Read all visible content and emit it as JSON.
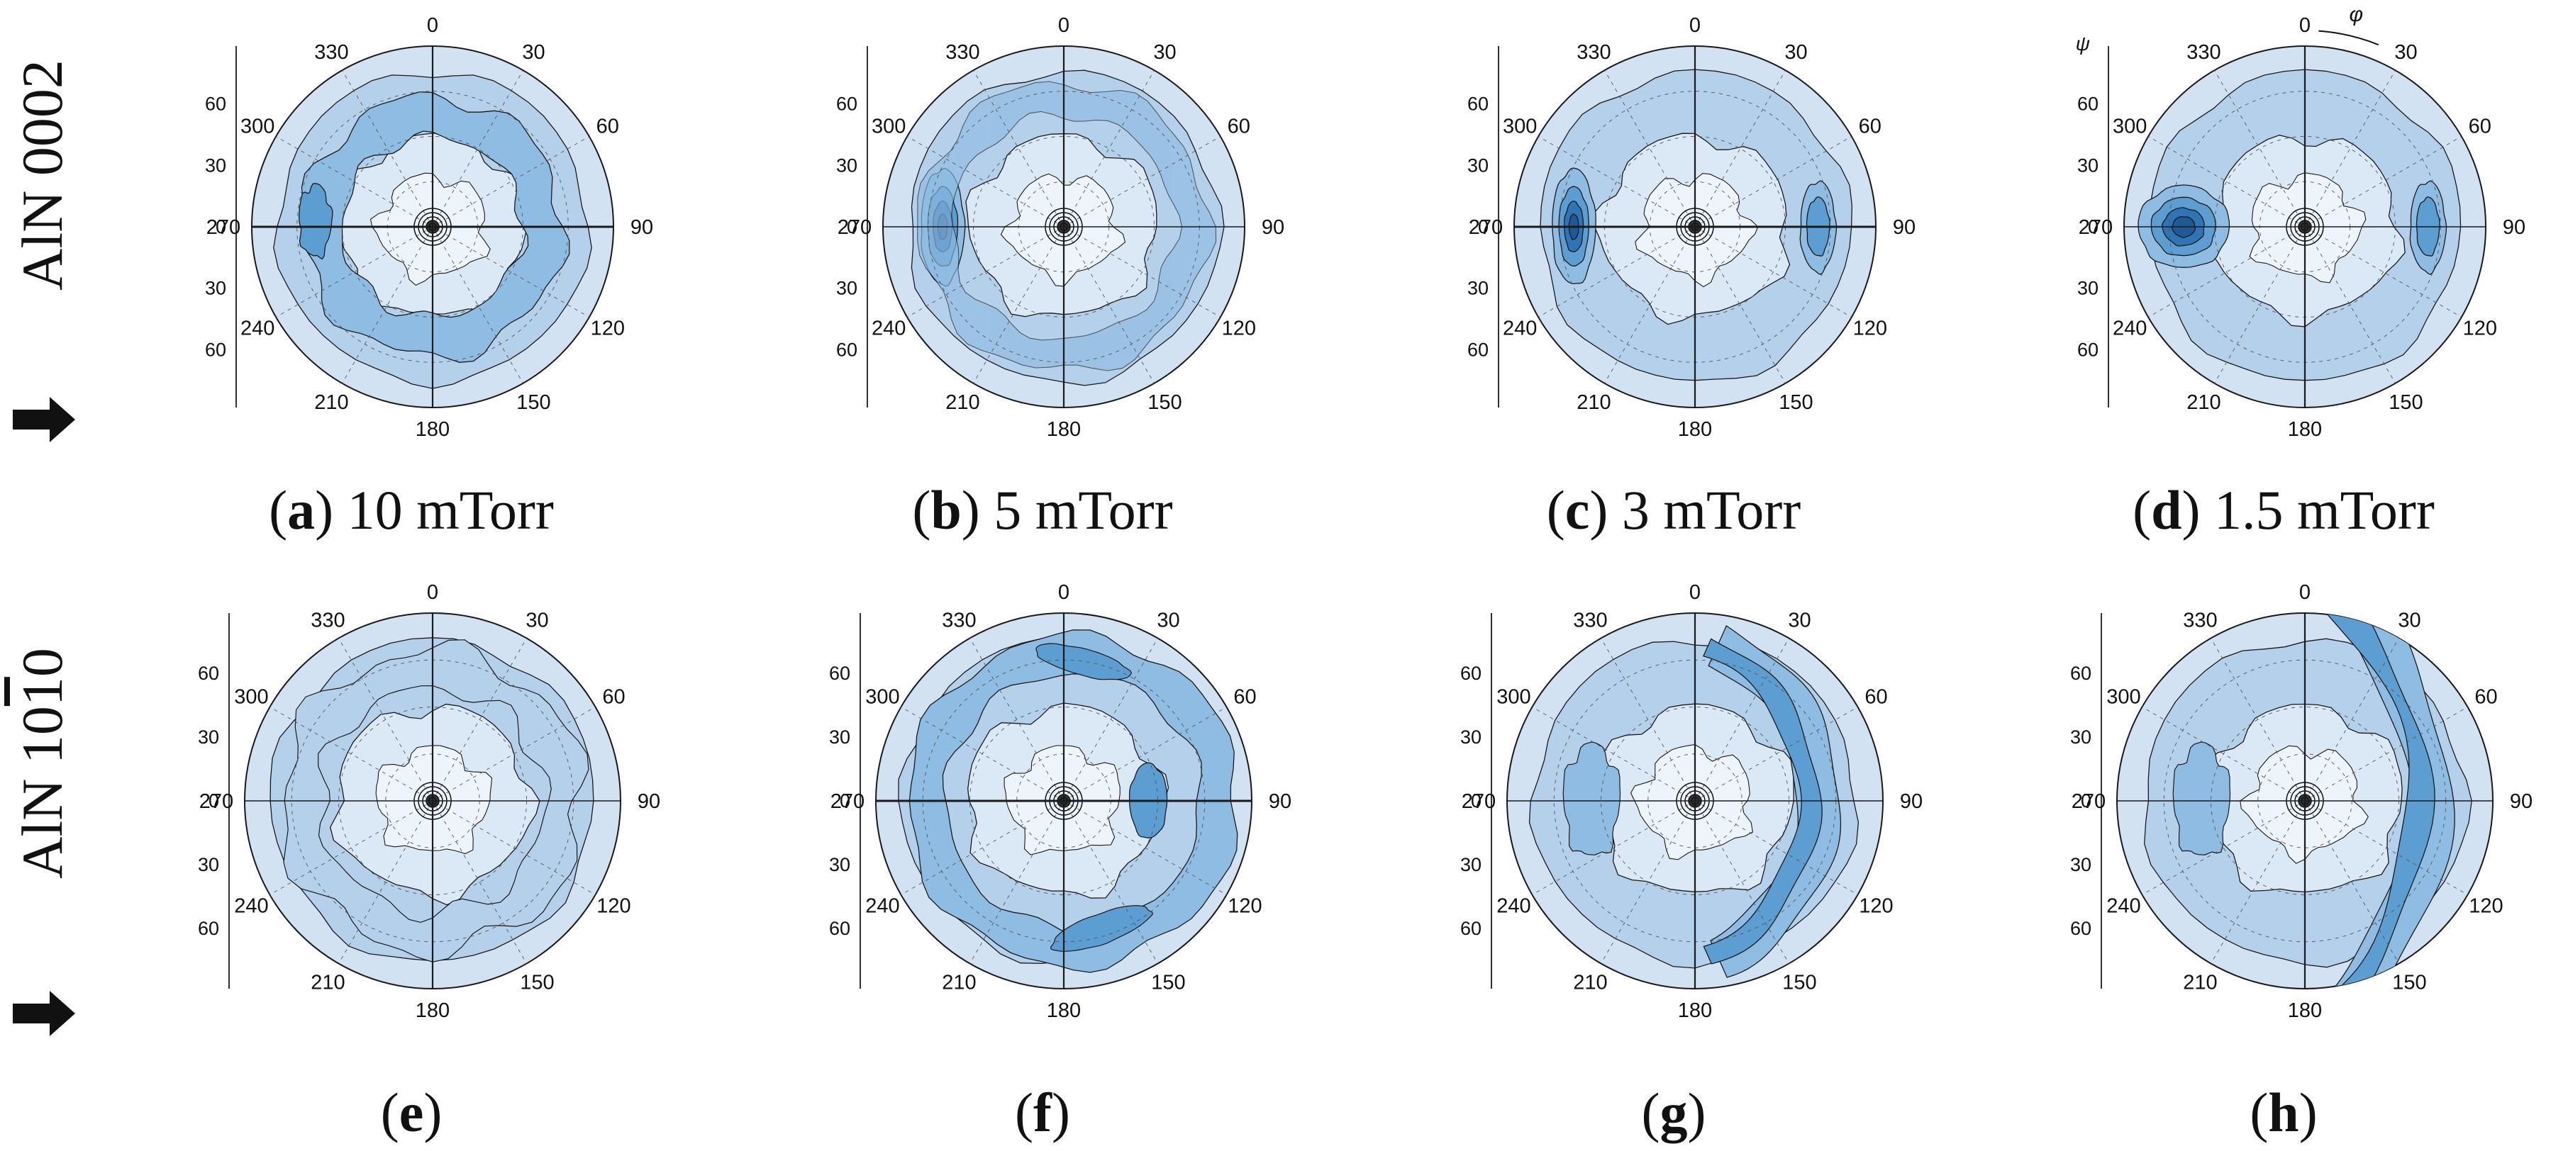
{
  "rows": [
    {
      "label_main": "AlN 0002",
      "label_overbar": ""
    },
    {
      "label_main": "AlN 10",
      "label_overbar": "1",
      "label_tail": "0"
    }
  ],
  "colors": {
    "outer": "#d3e2f2",
    "mid": "#b4d0ea",
    "dark": "#8fbce2",
    "darker": "#5c9dd2",
    "core": "#2f74b5",
    "line": "#1a1a1a"
  },
  "chart_data": [
    {
      "type": "polar-contour",
      "panel": "a",
      "caption_letter": "a",
      "caption_text": " 10 mTorr",
      "phi_ticks": [
        "0",
        "30",
        "60",
        "90",
        "120",
        "150",
        "180",
        "210",
        "240",
        "270",
        "300",
        "330"
      ],
      "psi_ticks": [
        "60",
        "30",
        "0",
        "30",
        "60"
      ],
      "phi_symbol": "",
      "psi_symbol": "",
      "pattern": "ring",
      "max_angle": 270
    },
    {
      "type": "polar-contour",
      "panel": "b",
      "caption_letter": "b",
      "caption_text": " 5 mTorr",
      "phi_ticks": [
        "0",
        "30",
        "60",
        "90",
        "120",
        "150",
        "180",
        "210",
        "240",
        "270",
        "300",
        "330"
      ],
      "psi_ticks": [
        "60",
        "30",
        "0",
        "30",
        "60"
      ],
      "phi_symbol": "",
      "psi_symbol": "",
      "pattern": "left-lobe",
      "max_angle": 270
    },
    {
      "type": "polar-contour",
      "panel": "c",
      "caption_letter": "c",
      "caption_text": " 3 mTorr",
      "phi_ticks": [
        "0",
        "30",
        "60",
        "90",
        "120",
        "150",
        "180",
        "210",
        "240",
        "270",
        "300",
        "330"
      ],
      "psi_ticks": [
        "60",
        "30",
        "0",
        "30",
        "60"
      ],
      "phi_symbol": "",
      "psi_symbol": "",
      "pattern": "two-lobe",
      "max_angle": 270
    },
    {
      "type": "polar-contour",
      "panel": "d",
      "caption_letter": "d",
      "caption_text": " 1.5 mTorr",
      "phi_ticks": [
        "0",
        "30",
        "60",
        "90",
        "120",
        "150",
        "180",
        "210",
        "240",
        "270",
        "300",
        "330"
      ],
      "psi_ticks": [
        "60",
        "30",
        "0",
        "30",
        "60"
      ],
      "phi_symbol": "φ",
      "psi_symbol": "ψ",
      "pattern": "spot",
      "max_angle": 270
    },
    {
      "type": "polar-contour",
      "panel": "e",
      "caption_letter": "e",
      "caption_text": "",
      "phi_ticks": [
        "0",
        "30",
        "60",
        "90",
        "120",
        "150",
        "180",
        "210",
        "240",
        "270",
        "300",
        "330"
      ],
      "psi_ticks": [
        "60",
        "30",
        "0",
        "30",
        "60"
      ],
      "phi_symbol": "",
      "psi_symbol": "",
      "pattern": "uniform",
      "max_angle": 90
    },
    {
      "type": "polar-contour",
      "panel": "f",
      "caption_letter": "f",
      "caption_text": "",
      "phi_ticks": [
        "0",
        "30",
        "60",
        "90",
        "120",
        "150",
        "180",
        "210",
        "240",
        "270",
        "300",
        "330"
      ],
      "psi_ticks": [
        "60",
        "30",
        "0",
        "30",
        "60"
      ],
      "phi_symbol": "",
      "psi_symbol": "",
      "pattern": "c-shape",
      "max_angle": 90
    },
    {
      "type": "polar-contour",
      "panel": "g",
      "caption_letter": "g",
      "caption_text": "",
      "phi_ticks": [
        "0",
        "30",
        "60",
        "90",
        "120",
        "150",
        "180",
        "210",
        "240",
        "270",
        "300",
        "330"
      ],
      "psi_ticks": [
        "60",
        "30",
        "0",
        "30",
        "60"
      ],
      "phi_symbol": "",
      "psi_symbol": "",
      "pattern": "arc-right",
      "max_angle": 90
    },
    {
      "type": "polar-contour",
      "panel": "h",
      "caption_letter": "h",
      "caption_text": "",
      "phi_ticks": [
        "0",
        "30",
        "60",
        "90",
        "120",
        "150",
        "180",
        "210",
        "240",
        "270",
        "300",
        "330"
      ],
      "psi_ticks": [
        "60",
        "30",
        "0",
        "30",
        "60"
      ],
      "phi_symbol": "",
      "psi_symbol": "",
      "pattern": "band-right",
      "max_angle": 90
    }
  ]
}
